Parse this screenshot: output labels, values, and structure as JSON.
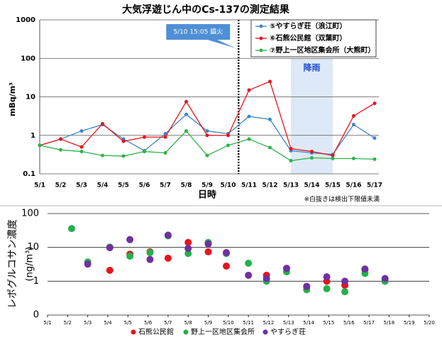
{
  "chart_data": [
    {
      "type": "line",
      "title": "大気浮遊じん中のCs-137の測定結果",
      "ylabel": "mBq/m³",
      "xlabel": "日時",
      "note": "※白抜きは検出下限値未満",
      "categories": [
        "5/1",
        "5/2",
        "5/3",
        "5/4",
        "5/5",
        "5/6",
        "5/7",
        "5/8",
        "5/9",
        "5/10",
        "5/11",
        "5/12",
        "5/13",
        "5/14",
        "5/15",
        "5/16",
        "5/17"
      ],
      "series": [
        {
          "name": "⑤やすらぎ荘（浪江町）",
          "color": "#3a86c8",
          "values": [
            0.55,
            0.8,
            1.3,
            1.9,
            0.8,
            0.4,
            1.1,
            3.5,
            1.3,
            1.1,
            3.1,
            2.6,
            0.4,
            0.35,
            0.32,
            1.9,
            0.85
          ]
        },
        {
          "name": "⑥石熊公民館（双葉町）",
          "color": "#e8141c",
          "values": [
            0.55,
            0.8,
            0.5,
            2.0,
            0.7,
            0.9,
            0.9,
            7.5,
            1.0,
            1.0,
            15,
            25,
            0.45,
            0.38,
            0.3,
            3.2,
            6.8
          ]
        },
        {
          "name": "⑦野上一区地区集会所（大熊町）",
          "color": "#2db34a",
          "values": [
            0.55,
            0.42,
            0.38,
            0.3,
            0.29,
            0.38,
            0.35,
            1.3,
            0.3,
            0.55,
            0.8,
            0.48,
            0.22,
            0.26,
            0.25,
            0.25,
            0.24
          ]
        }
      ],
      "log_scale": true,
      "ylim": [
        0.1,
        1000
      ],
      "yticks": [
        0.1,
        1,
        10,
        100,
        1000
      ],
      "grid": true,
      "annotation": {
        "text": "5/10 15:05 鎮火",
        "between": [
          "5/10",
          "5/11"
        ]
      },
      "shaded": {
        "text": "降雨",
        "from": "5/13",
        "to": "5/15"
      }
    },
    {
      "type": "scatter",
      "ylabel": "レポグルコサン濃度",
      "yunit": "(ng/m³)",
      "log_scale": true,
      "ylim": [
        0.1,
        100
      ],
      "yticks": [
        {
          "value": 0.1,
          "label": "0"
        },
        1,
        10,
        100
      ],
      "grid": true,
      "xlim": [
        1,
        20
      ],
      "xticks": [
        {
          "value": 1,
          "label": "5/1"
        },
        {
          "value": 2,
          "label": "5/2"
        },
        {
          "value": 3,
          "label": "5/3"
        },
        {
          "value": 4,
          "label": "5/4"
        },
        {
          "value": 5,
          "label": "5/5"
        },
        {
          "value": 6,
          "label": "5/6"
        },
        {
          "value": 7,
          "label": "5/7"
        },
        {
          "value": 8,
          "label": "5/8"
        },
        {
          "value": 9,
          "label": "5/9"
        },
        {
          "value": 10,
          "label": "5/10"
        },
        {
          "value": 11,
          "label": "5/11"
        },
        {
          "value": 12,
          "label": "5/12"
        },
        {
          "value": 13,
          "label": "5/13"
        },
        {
          "value": 14,
          "label": "5/14"
        },
        {
          "value": 15,
          "label": "5/15"
        },
        {
          "value": 16,
          "label": "5/16"
        },
        {
          "value": 17,
          "label": "5/17"
        },
        {
          "value": 18,
          "label": "5/18"
        },
        {
          "value": 19,
          "label": "5/19"
        },
        {
          "value": 20,
          "label": "5/20"
        }
      ],
      "series": [
        {
          "name": "石熊公民館",
          "color": "#e8141c",
          "x": [
            4.1,
            5.1,
            6.1,
            7.0,
            8.0,
            9.0,
            9.9,
            11.9,
            12.9,
            13.9,
            14.9,
            15.8,
            16.8,
            17.8
          ],
          "values": [
            2.1,
            6.3,
            7.4,
            4.8,
            14,
            7.4,
            2.8,
            1.5,
            2.4,
            0.7,
            1.0,
            0.76,
            2.2,
            1.0
          ]
        },
        {
          "name": "野上一区地区集会所",
          "color": "#22b14c",
          "x": [
            2.2,
            3.0,
            4.1,
            5.1,
            6.1,
            7.0,
            8.0,
            9.0,
            9.9,
            11.0,
            11.9,
            12.9,
            13.9,
            14.9,
            15.8,
            16.8,
            17.8
          ],
          "values": [
            36,
            3.7,
            10.2,
            5.5,
            7,
            22,
            6.6,
            14,
            6.6,
            3.4,
            1.0,
            1.9,
            0.56,
            0.6,
            0.49,
            1.7,
            1.0
          ]
        },
        {
          "name": "やすらぎ荘",
          "color": "#7030a0",
          "x": [
            3.0,
            4.1,
            5.1,
            6.1,
            7.0,
            8.0,
            9.0,
            9.9,
            11.0,
            11.9,
            12.9,
            13.9,
            14.9,
            15.8,
            16.8,
            17.8
          ],
          "values": [
            3.2,
            9.8,
            17,
            4.4,
            23,
            9.3,
            12.6,
            7,
            1.5,
            1.2,
            2.4,
            0.7,
            1.35,
            1.0,
            2.3,
            1.2
          ]
        }
      ]
    }
  ]
}
